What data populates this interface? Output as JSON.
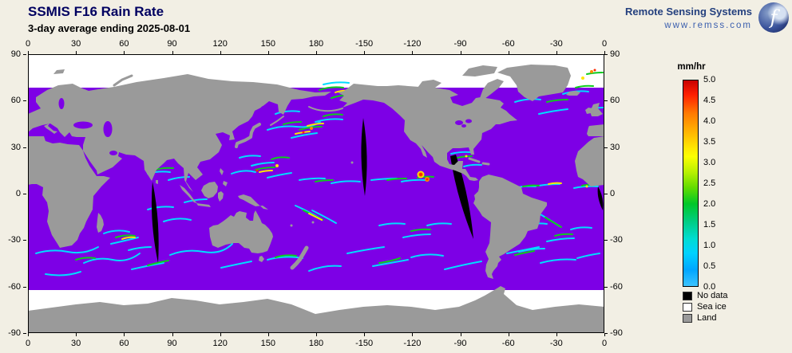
{
  "header": {
    "title": "SSMIS F16 Rain Rate",
    "subtitle": "3-day average ending 2025-08-01",
    "brand": {
      "name": "Remote Sensing Systems",
      "url": "www.remss.com",
      "logo_letter": "f"
    }
  },
  "map": {
    "lon_ticks": [
      "0",
      "30",
      "60",
      "90",
      "120",
      "150",
      "180",
      "-150",
      "-120",
      "-90",
      "-60",
      "-30",
      "0"
    ],
    "lat_ticks": [
      "90",
      "60",
      "30",
      "0",
      "-30",
      "-60",
      "-90"
    ]
  },
  "colorbar": {
    "unit": "mm/hr",
    "ticks": [
      "5.0",
      "4.5",
      "4.0",
      "3.5",
      "3.0",
      "2.5",
      "2.0",
      "1.5",
      "1.0",
      "0.5",
      "0.0"
    ],
    "gradient": [
      "#c80000 0%",
      "#ff2000 7%",
      "#ff7a00 16%",
      "#ffb400 25%",
      "#ffe800 33%",
      "#fcff00 37%",
      "#b4f000 45%",
      "#64dc00 52%",
      "#00c828 60%",
      "#00cd87 69%",
      "#00dcd2 77%",
      "#00d2ff 84%",
      "#00a6ff 92%",
      "#3cc3ff 100%"
    ]
  },
  "legend": [
    {
      "label": "No data",
      "color": "#000000"
    },
    {
      "label": "Sea ice",
      "color": "#ffffff"
    },
    {
      "label": "Land",
      "color": "#9a9a9a"
    }
  ],
  "colors": {
    "background": "#f2efe4",
    "ocean": "#7d00e6",
    "land": "#9a9a9a",
    "sea_ice": "#ffffff",
    "no_data": "#000000",
    "rain_cyan": "#00dcff",
    "rain_green": "#0ecb1e",
    "rain_yellow": "#ffe400",
    "rain_orange": "#ff8c00",
    "rain_red": "#ff2800"
  }
}
